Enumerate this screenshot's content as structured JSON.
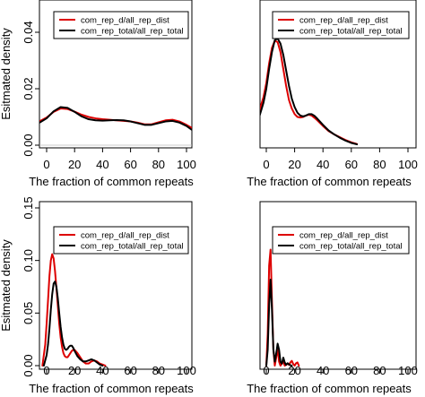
{
  "chart_data": [
    {
      "type": "line",
      "xlabel": "The fraction of common repeats",
      "ylabel": "Esitmated density",
      "xlim": [
        0,
        100
      ],
      "ylim": [
        0,
        0.05
      ],
      "xticks": [
        0,
        20,
        40,
        60,
        80,
        100
      ],
      "yticks": [
        0.0,
        0.02,
        0.04
      ],
      "ytick_labels": [
        "0.00",
        "0.02",
        "0.04"
      ],
      "legend_position": "top-left",
      "series": [
        {
          "name": "com_rep_d/all_rep_dist",
          "color": "#dd0000",
          "x": [
            -5,
            0,
            5,
            10,
            15,
            20,
            25,
            30,
            35,
            40,
            45,
            50,
            55,
            60,
            65,
            70,
            75,
            80,
            85,
            90,
            95,
            100,
            105
          ],
          "y": [
            0.0085,
            0.0098,
            0.0118,
            0.013,
            0.0128,
            0.0119,
            0.0108,
            0.01,
            0.0095,
            0.0092,
            0.009,
            0.0088,
            0.0086,
            0.0084,
            0.008,
            0.0074,
            0.0074,
            0.0081,
            0.0088,
            0.009,
            0.0084,
            0.0072,
            0.0058
          ]
        },
        {
          "name": "com_rep_total/all_rep_total",
          "color": "#000000",
          "x": [
            -5,
            0,
            5,
            10,
            15,
            20,
            25,
            30,
            35,
            40,
            45,
            50,
            55,
            60,
            65,
            70,
            75,
            80,
            85,
            90,
            95,
            100,
            105
          ],
          "y": [
            0.008,
            0.0095,
            0.012,
            0.0135,
            0.0132,
            0.0118,
            0.0102,
            0.0092,
            0.0088,
            0.0087,
            0.0088,
            0.0089,
            0.0088,
            0.0084,
            0.0078,
            0.0072,
            0.0072,
            0.0078,
            0.0084,
            0.0086,
            0.008,
            0.0068,
            0.005
          ]
        }
      ]
    },
    {
      "type": "line",
      "xlabel": "The fraction of common repeats",
      "ylabel": "",
      "xlim": [
        0,
        100
      ],
      "ylim": [
        0,
        0.05
      ],
      "xticks": [
        0,
        20,
        40,
        60,
        80,
        100
      ],
      "yticks": [],
      "ytick_labels": [],
      "legend_position": "top-right",
      "series": [
        {
          "name": "com_rep_d/all_rep_dist",
          "color": "#dd0000",
          "x": [
            -5,
            -2,
            0,
            2,
            4,
            6,
            8,
            10,
            12,
            14,
            16,
            18,
            20,
            22,
            24,
            26,
            28,
            30,
            32,
            34,
            36,
            40,
            44,
            48,
            52,
            56,
            60,
            64
          ],
          "y": [
            0.012,
            0.017,
            0.022,
            0.029,
            0.0345,
            0.037,
            0.0365,
            0.033,
            0.027,
            0.021,
            0.016,
            0.013,
            0.011,
            0.01,
            0.0098,
            0.01,
            0.0105,
            0.0108,
            0.0105,
            0.0097,
            0.0088,
            0.0068,
            0.005,
            0.0038,
            0.0028,
            0.0018,
            0.001,
            0.0004
          ]
        },
        {
          "name": "com_rep_total/all_rep_total",
          "color": "#000000",
          "x": [
            -5,
            -2,
            0,
            2,
            4,
            6,
            8,
            10,
            12,
            14,
            16,
            18,
            20,
            22,
            24,
            26,
            28,
            30,
            32,
            34,
            36,
            40,
            44,
            48,
            52,
            56,
            60,
            64
          ],
          "y": [
            0.01,
            0.015,
            0.02,
            0.027,
            0.033,
            0.0372,
            0.0378,
            0.036,
            0.032,
            0.0265,
            0.021,
            0.0165,
            0.0135,
            0.0115,
            0.0105,
            0.0102,
            0.0105,
            0.011,
            0.011,
            0.0104,
            0.0094,
            0.0072,
            0.0052,
            0.0038,
            0.0026,
            0.0016,
            0.0008,
            0.0003
          ]
        }
      ]
    },
    {
      "type": "line",
      "xlabel": "The fraction of common repeats",
      "ylabel": "Esitmated density",
      "xlim": [
        0,
        100
      ],
      "ylim": [
        0,
        0.15
      ],
      "xticks": [
        0,
        20,
        40,
        60,
        80,
        100
      ],
      "yticks": [
        0.0,
        0.05,
        0.1,
        0.15
      ],
      "ytick_labels": [
        "0.00",
        "0.05",
        "0.10",
        "0.15"
      ],
      "legend_position": "top-left",
      "series": [
        {
          "name": "com_rep_d/all_rep_dist",
          "color": "#dd0000",
          "x": [
            -3,
            -1,
            0,
            1,
            2,
            3,
            4,
            5,
            6,
            7,
            8,
            9,
            10,
            11,
            12,
            13,
            14,
            15,
            16,
            17,
            18,
            19,
            20,
            22,
            24,
            26,
            28,
            30,
            32,
            34,
            36,
            38,
            40,
            42
          ],
          "y": [
            0.0,
            0.02,
            0.04,
            0.062,
            0.085,
            0.1,
            0.106,
            0.102,
            0.09,
            0.074,
            0.057,
            0.04,
            0.027,
            0.018,
            0.012,
            0.009,
            0.008,
            0.008,
            0.01,
            0.012,
            0.014,
            0.015,
            0.015,
            0.012,
            0.008,
            0.004,
            0.002,
            0.002,
            0.004,
            0.005,
            0.004,
            0.002,
            0.001,
            0.0
          ]
        },
        {
          "name": "com_rep_total/all_rep_total",
          "color": "#000000",
          "x": [
            -2,
            0,
            1,
            2,
            3,
            4,
            5,
            6,
            7,
            8,
            9,
            10,
            11,
            12,
            13,
            14,
            15,
            16,
            17,
            18,
            19,
            20,
            22,
            24,
            26,
            28,
            30,
            32,
            34,
            36,
            38,
            40
          ],
          "y": [
            0.0,
            0.01,
            0.02,
            0.035,
            0.053,
            0.068,
            0.078,
            0.08,
            0.075,
            0.064,
            0.05,
            0.037,
            0.027,
            0.02,
            0.016,
            0.015,
            0.016,
            0.018,
            0.019,
            0.019,
            0.017,
            0.014,
            0.009,
            0.006,
            0.004,
            0.004,
            0.005,
            0.006,
            0.005,
            0.003,
            0.001,
            0.0
          ]
        }
      ]
    },
    {
      "type": "line",
      "xlabel": "The fraction of common repeats",
      "ylabel": "",
      "xlim": [
        0,
        100
      ],
      "ylim": [
        0,
        0.4
      ],
      "xticks": [
        0,
        20,
        40,
        60,
        80,
        100
      ],
      "yticks": [],
      "ytick_labels": [],
      "legend_position": "top-right",
      "series": [
        {
          "name": "com_rep_d/all_rep_dist",
          "color": "#dd0000",
          "x": [
            0,
            1,
            2,
            3,
            4,
            5,
            6,
            7,
            8,
            9,
            10,
            11,
            12,
            13,
            14,
            15,
            16,
            17,
            18,
            19,
            20,
            21,
            22,
            23
          ],
          "y": [
            0.0,
            0.08,
            0.25,
            0.29,
            0.16,
            0.04,
            0.0,
            0.02,
            0.045,
            0.01,
            0.0,
            0.005,
            0.01,
            0.0,
            0.002,
            0.005,
            0.002,
            0.008,
            0.012,
            0.004,
            0.0,
            0.006,
            0.008,
            0.0
          ]
        },
        {
          "name": "com_rep_total/all_rep_total",
          "color": "#000000",
          "x": [
            0,
            1,
            2,
            3,
            4,
            5,
            6,
            7,
            8,
            9,
            10,
            11,
            12,
            13,
            14,
            15,
            16,
            17,
            18
          ],
          "y": [
            0.0,
            0.04,
            0.15,
            0.215,
            0.14,
            0.04,
            0.01,
            0.03,
            0.055,
            0.04,
            0.01,
            0.005,
            0.02,
            0.008,
            0.002,
            0.006,
            0.003,
            0.001,
            0.0
          ]
        }
      ]
    }
  ]
}
